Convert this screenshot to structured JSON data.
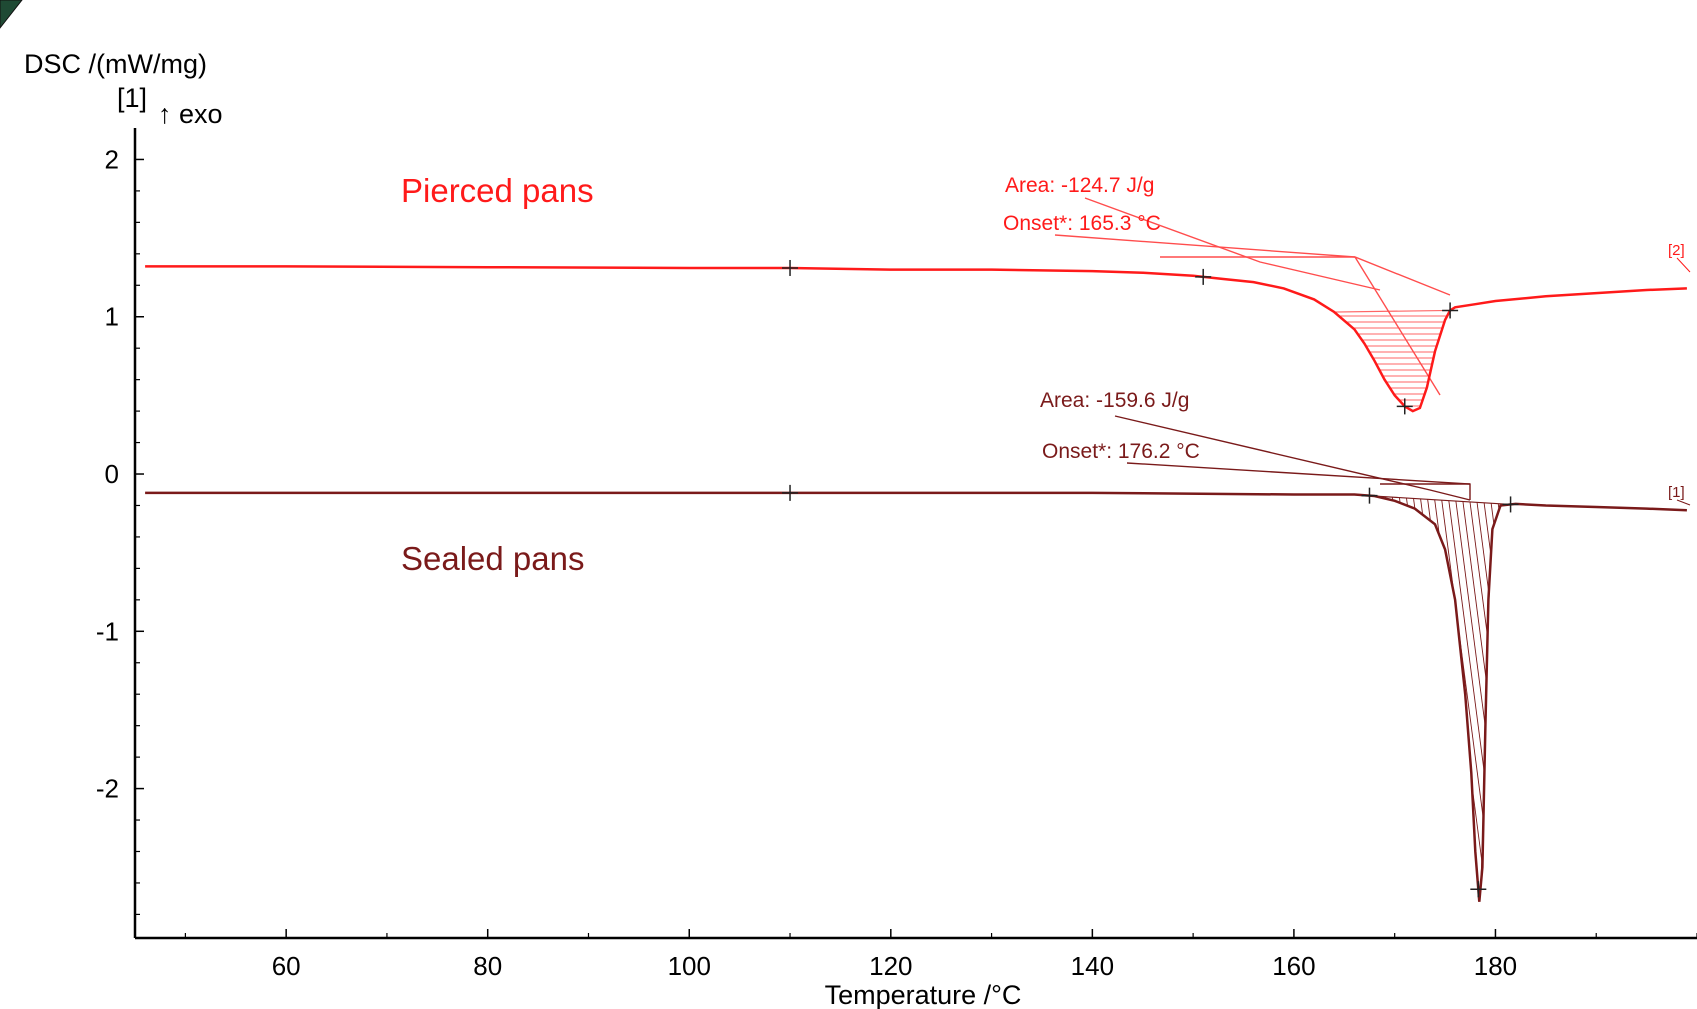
{
  "chart_data": {
    "type": "line",
    "title": "",
    "xlabel": "Temperature /°C",
    "ylabel": "DSC /(mW/mg)",
    "y_unit_marker": "[1]",
    "y_direction_label": "↑ exo",
    "xlim": [
      45,
      200
    ],
    "ylim": [
      -2.95,
      2.2
    ],
    "x_ticks": [
      60,
      80,
      100,
      120,
      140,
      160,
      180
    ],
    "y_ticks": [
      -2,
      -1,
      0,
      1,
      2
    ],
    "grid": false,
    "colors": {
      "pierced": "#ff1a1a",
      "sealed": "#7a1a1a",
      "axis": "#000000"
    },
    "series": [
      {
        "name": "Pierced pans",
        "tag": "[2]",
        "x": [
          46,
          60,
          80,
          100,
          110,
          120,
          130,
          140,
          145,
          150,
          153,
          156,
          159,
          162,
          164,
          166,
          167,
          168,
          169,
          170,
          171,
          171.8,
          172.5,
          173.2,
          174,
          175,
          175.5,
          176,
          178,
          180,
          185,
          190,
          195,
          199
        ],
        "y": [
          1.32,
          1.32,
          1.315,
          1.31,
          1.31,
          1.3,
          1.3,
          1.29,
          1.28,
          1.26,
          1.24,
          1.22,
          1.18,
          1.11,
          1.03,
          0.92,
          0.83,
          0.72,
          0.6,
          0.5,
          0.43,
          0.4,
          0.42,
          0.55,
          0.78,
          0.98,
          1.04,
          1.06,
          1.08,
          1.1,
          1.13,
          1.15,
          1.17,
          1.18
        ],
        "markers_x": [
          110,
          151,
          171,
          175.5
        ],
        "annotations": {
          "area": "Area: -124.7 J/g",
          "onset": "Onset*: 165.3 °C"
        }
      },
      {
        "name": "Sealed pans",
        "tag": "[1]",
        "x": [
          46,
          60,
          80,
          100,
          110,
          120,
          140,
          160,
          166,
          168,
          170,
          172,
          174,
          175,
          176,
          177,
          177.6,
          178,
          178.4,
          178.7,
          179,
          179.3,
          179.7,
          180.5,
          182,
          185,
          190,
          195,
          199
        ],
        "y": [
          -0.12,
          -0.12,
          -0.12,
          -0.12,
          -0.12,
          -0.12,
          -0.12,
          -0.13,
          -0.13,
          -0.14,
          -0.17,
          -0.22,
          -0.32,
          -0.48,
          -0.8,
          -1.4,
          -1.9,
          -2.4,
          -2.72,
          -2.5,
          -1.6,
          -0.8,
          -0.35,
          -0.2,
          -0.19,
          -0.2,
          -0.21,
          -0.22,
          -0.23
        ],
        "markers_x": [
          110,
          167.5,
          178.3,
          181.5
        ],
        "annotations": {
          "area": "Area: -159.6 J/g",
          "onset": "Onset*: 176.2 °C"
        }
      }
    ]
  }
}
